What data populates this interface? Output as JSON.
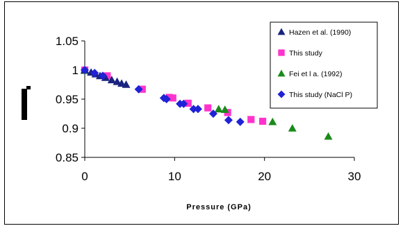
{
  "chart_data": {
    "type": "scatter",
    "xlabel": "Pressure (GPa)",
    "ylabel": "",
    "xlim": [
      0,
      30
    ],
    "ylim": [
      0.85,
      1.05
    ],
    "x_ticks": [
      "0",
      "10",
      "20",
      "30"
    ],
    "y_ticks": [
      "0.85",
      "0.9",
      "0.95",
      "1",
      "1.05"
    ],
    "grid": false,
    "legend_position": "right",
    "series": [
      {
        "name": "Hazen et al. (1990)",
        "marker": "triangle",
        "color": "#1a237e",
        "points": [
          [
            0,
            1.0
          ],
          [
            0.7,
            0.996
          ],
          [
            1.2,
            0.993
          ],
          [
            1.7,
            0.99
          ],
          [
            2.3,
            0.987
          ],
          [
            3.0,
            0.983
          ],
          [
            3.6,
            0.98
          ],
          [
            4.1,
            0.977
          ],
          [
            4.6,
            0.975
          ]
        ]
      },
      {
        "name": "This study",
        "marker": "square",
        "color": "#ff33cc",
        "points": [
          [
            0,
            1.0
          ],
          [
            2.5,
            0.99
          ],
          [
            6.4,
            0.967
          ],
          [
            9.4,
            0.953
          ],
          [
            9.8,
            0.952
          ],
          [
            11.5,
            0.943
          ],
          [
            13.7,
            0.935
          ],
          [
            15.9,
            0.927
          ],
          [
            18.5,
            0.915
          ],
          [
            19.8,
            0.912
          ]
        ]
      },
      {
        "name": "Fei et l a. (1992)",
        "marker": "triangle",
        "color": "#1a8a1a",
        "points": [
          [
            0,
            0.999
          ],
          [
            14.9,
            0.933
          ],
          [
            15.6,
            0.932
          ],
          [
            20.9,
            0.911
          ],
          [
            23.1,
            0.9
          ],
          [
            27.1,
            0.886
          ]
        ]
      },
      {
        "name": "This study (NaCl P)",
        "marker": "diamond",
        "color": "#1f22d6",
        "points": [
          [
            0,
            1.0
          ],
          [
            1.1,
            0.995
          ],
          [
            2.0,
            0.99
          ],
          [
            6.0,
            0.967
          ],
          [
            8.8,
            0.952
          ],
          [
            9.1,
            0.95
          ],
          [
            10.6,
            0.942
          ],
          [
            11.0,
            0.942
          ],
          [
            12.1,
            0.933
          ],
          [
            12.6,
            0.933
          ],
          [
            14.3,
            0.925
          ],
          [
            16.0,
            0.914
          ],
          [
            17.3,
            0.911
          ]
        ]
      }
    ]
  }
}
